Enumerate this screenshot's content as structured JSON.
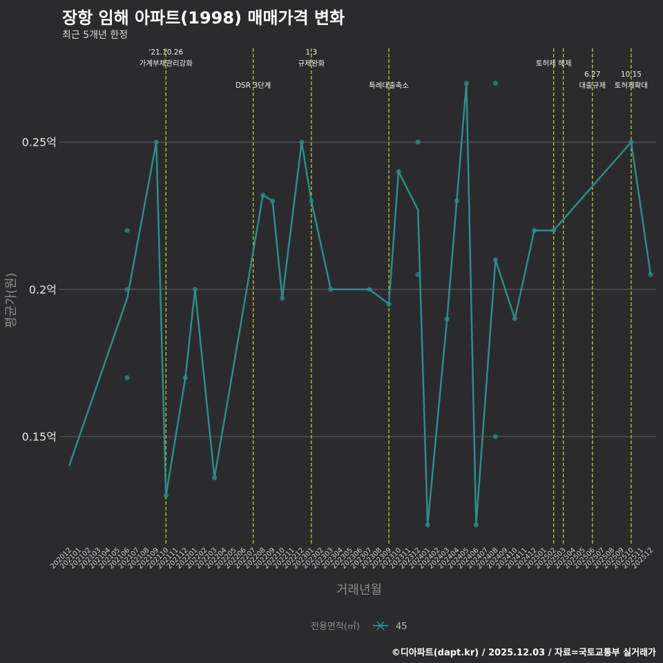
{
  "header": {
    "title": "장항 임해 아파트(1998) 매매가격 변화",
    "subtitle": "최근 5개년 한정"
  },
  "footer": {
    "source": "©디아파트(dapt.kr) / 2025.12.03 / 자료=국토교통부 실거래가"
  },
  "colors": {
    "background": "#2b2b2d",
    "series": "#2a8f8a",
    "event_line": "#d8d832",
    "grid": "#5a5a5a"
  },
  "chart_data": {
    "type": "line",
    "title": "장항 임해 아파트(1998) 매매가격 변화",
    "subtitle": "최근 5개년 한정",
    "xlabel": "거래년월",
    "ylabel": "평균가(원)",
    "ylim": [
      0.113,
      0.283
    ],
    "yticks": [
      {
        "value": 0.15,
        "label": "0.15억"
      },
      {
        "value": 0.2,
        "label": "0.2억"
      },
      {
        "value": 0.25,
        "label": "0.25억"
      }
    ],
    "categories": [
      "202012",
      "202101",
      "202102",
      "202103",
      "202104",
      "202105",
      "202106",
      "202107",
      "202108",
      "202109",
      "202110",
      "202111",
      "202112",
      "202201",
      "202202",
      "202203",
      "202204",
      "202205",
      "202206",
      "202207",
      "202208",
      "202209",
      "202210",
      "202211",
      "202212",
      "202301",
      "202302",
      "202303",
      "202304",
      "202305",
      "202306",
      "202307",
      "202308",
      "202309",
      "202310",
      "202311",
      "202312",
      "202401",
      "202402",
      "202403",
      "202404",
      "202405",
      "202406",
      "202407",
      "202408",
      "202409",
      "202410",
      "202411",
      "202412",
      "202501",
      "202502",
      "202503",
      "202504",
      "202505",
      "202506",
      "202507",
      "202508",
      "202509",
      "202510",
      "202511",
      "202512"
    ],
    "legend": {
      "title": "전용면적(㎡)",
      "entries": [
        "45"
      ]
    },
    "series": [
      {
        "name": "45",
        "line": [
          [
            "202012",
            0.14
          ],
          [
            "202106",
            0.197
          ],
          [
            "202109",
            0.25
          ],
          [
            "202110",
            0.13
          ],
          [
            "202112",
            0.17
          ],
          [
            "202201",
            0.2
          ],
          [
            "202203",
            0.136
          ],
          [
            "202208",
            0.232
          ],
          [
            "202209",
            0.23
          ],
          [
            "202210",
            0.197
          ],
          [
            "202212",
            0.25
          ],
          [
            "202301",
            0.23
          ],
          [
            "202303",
            0.2
          ],
          [
            "202307",
            0.2
          ],
          [
            "202309",
            0.195
          ],
          [
            "202310",
            0.24
          ],
          [
            "202312",
            0.227
          ],
          [
            "202401",
            0.12
          ],
          [
            "202403",
            0.19
          ],
          [
            "202404",
            0.23
          ],
          [
            "202405",
            0.27
          ],
          [
            "202406",
            0.12
          ],
          [
            "202408",
            0.21
          ],
          [
            "202410",
            0.19
          ],
          [
            "202412",
            0.22
          ],
          [
            "202502",
            0.22
          ],
          [
            "202510",
            0.25
          ],
          [
            "202512",
            0.205
          ]
        ],
        "points": [
          [
            "202106",
            0.22
          ],
          [
            "202106",
            0.2
          ],
          [
            "202106",
            0.17
          ],
          [
            "202109",
            0.25
          ],
          [
            "202110",
            0.13
          ],
          [
            "202112",
            0.17
          ],
          [
            "202201",
            0.2
          ],
          [
            "202203",
            0.136
          ],
          [
            "202208",
            0.232
          ],
          [
            "202209",
            0.23
          ],
          [
            "202210",
            0.197
          ],
          [
            "202212",
            0.25
          ],
          [
            "202301",
            0.23
          ],
          [
            "202303",
            0.2
          ],
          [
            "202307",
            0.2
          ],
          [
            "202309",
            0.195
          ],
          [
            "202310",
            0.24
          ],
          [
            "202312",
            0.25
          ],
          [
            "202312",
            0.205
          ],
          [
            "202401",
            0.12
          ],
          [
            "202403",
            0.19
          ],
          [
            "202404",
            0.23
          ],
          [
            "202405",
            0.27
          ],
          [
            "202406",
            0.12
          ],
          [
            "202408",
            0.27
          ],
          [
            "202408",
            0.21
          ],
          [
            "202408",
            0.15
          ],
          [
            "202410",
            0.19
          ],
          [
            "202412",
            0.22
          ],
          [
            "202502",
            0.22
          ],
          [
            "202510",
            0.25
          ],
          [
            "202512",
            0.205
          ]
        ]
      }
    ],
    "events": [
      {
        "x": "202110",
        "lines": [
          "'21.10.26",
          "가계부채관리강화"
        ],
        "tier": 0
      },
      {
        "x": "202207",
        "lines": [
          "DSR 3단계"
        ],
        "tier": 1
      },
      {
        "x": "202301",
        "lines": [
          "1.3",
          "규제완화"
        ],
        "tier": 0
      },
      {
        "x": "202309",
        "lines": [
          "특례대출축소"
        ],
        "tier": 1
      },
      {
        "x": "202502",
        "lines": [
          "토허제 해제"
        ],
        "tier": 0
      },
      {
        "x": "202503",
        "lines": [],
        "tier": 0
      },
      {
        "x": "202506",
        "lines": [
          "6.27",
          "대출규제"
        ],
        "tier": 1
      },
      {
        "x": "202510",
        "lines": [
          "10.15",
          "토허제확대"
        ],
        "tier": 1
      }
    ]
  }
}
